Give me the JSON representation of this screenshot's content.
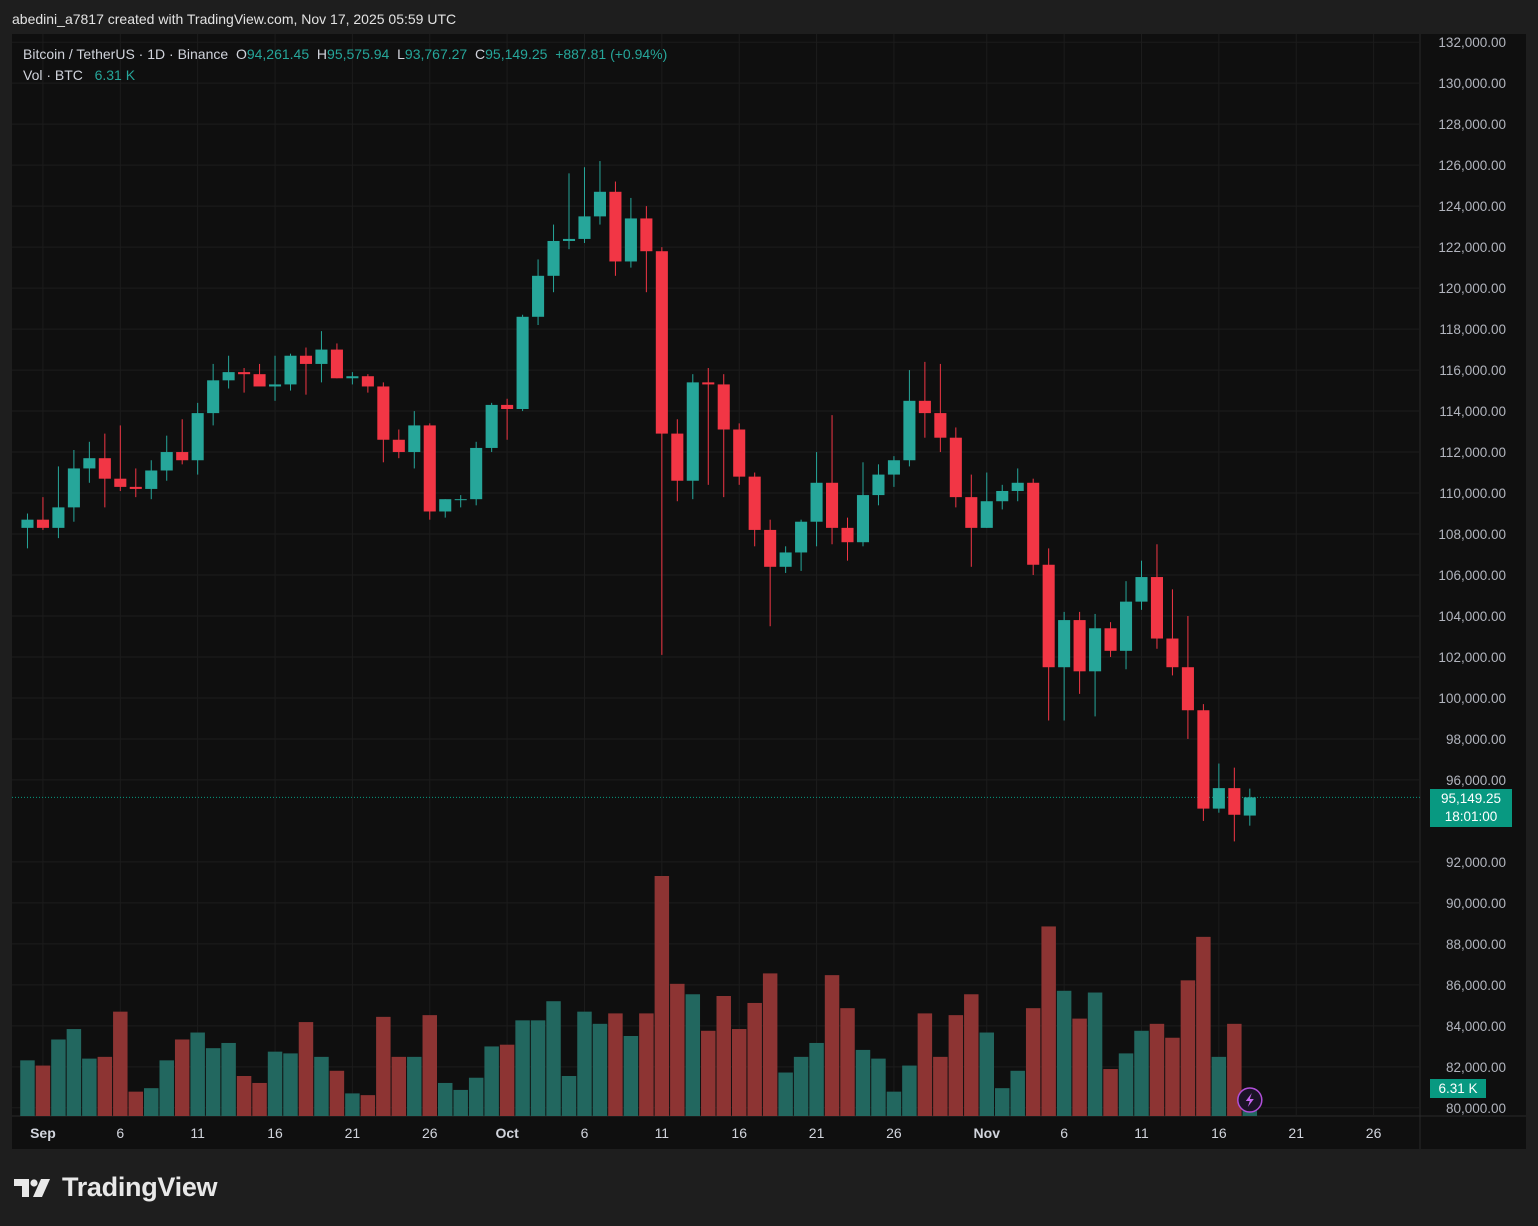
{
  "caption": "abedini_a7817 created with TradingView.com, Nov 17, 2025 05:59 UTC",
  "legend": {
    "symbol": "Bitcoin / TetherUS · 1D · Binance",
    "o_label": "O",
    "o_value": "94,261.45",
    "h_label": "H",
    "h_value": "95,575.94",
    "l_label": "L",
    "l_value": "93,767.27",
    "c_label": "C",
    "c_value": "95,149.25",
    "change": "+887.81 (+0.94%)",
    "vol_label": "Vol · BTC",
    "vol_value": "6.31 K"
  },
  "badges": {
    "price": "95,149.25",
    "countdown": "18:01:00",
    "volume": "6.31 K"
  },
  "brand": "TradingView",
  "colors": {
    "up": "#26a69a",
    "down": "#f23645",
    "vol_up": "#22675f",
    "vol_down": "#8d3433",
    "background": "#0f0f0f"
  },
  "icons": {
    "alert": "lightning-bolt-icon",
    "logo": "tradingview-logo-icon"
  },
  "chart_data": {
    "type": "candlestick",
    "y_axis": {
      "range": [
        79600,
        132400
      ],
      "ticks": [
        "132,000.00",
        "130,000.00",
        "128,000.00",
        "126,000.00",
        "124,000.00",
        "122,000.00",
        "120,000.00",
        "118,000.00",
        "116,000.00",
        "114,000.00",
        "112,000.00",
        "110,000.00",
        "108,000.00",
        "106,000.00",
        "104,000.00",
        "102,000.00",
        "100,000.00",
        "98,000.00",
        "96,000.00",
        "92,000.00",
        "90,000.00",
        "88,000.00",
        "86,000.00",
        "84,000.00",
        "82,000.00",
        "80,000.00"
      ],
      "tick_values": [
        132000,
        130000,
        128000,
        126000,
        124000,
        122000,
        120000,
        118000,
        116000,
        114000,
        112000,
        110000,
        108000,
        106000,
        104000,
        102000,
        100000,
        98000,
        96000,
        92000,
        90000,
        88000,
        86000,
        84000,
        82000,
        80000
      ]
    },
    "x_axis": {
      "labels": [
        "Sep",
        "6",
        "11",
        "16",
        "21",
        "26",
        "Oct",
        "6",
        "11",
        "16",
        "21",
        "26",
        "Nov",
        "6",
        "11",
        "16",
        "21",
        "26"
      ],
      "label_dates": [
        "2025-09-01",
        "2025-09-06",
        "2025-09-11",
        "2025-09-16",
        "2025-09-21",
        "2025-09-26",
        "2025-10-01",
        "2025-10-06",
        "2025-10-11",
        "2025-10-16",
        "2025-10-21",
        "2025-10-26",
        "2025-11-01",
        "2025-11-06",
        "2025-11-11",
        "2025-11-16",
        "2025-11-21",
        "2025-11-26"
      ],
      "range": [
        "2025-08-30",
        "2025-11-29"
      ]
    },
    "grid": true,
    "last_price_line": 95149.25,
    "candles": [
      {
        "date": "2025-08-31",
        "o": 108300,
        "h": 109000,
        "l": 107300,
        "c": 108700
      },
      {
        "date": "2025-09-01",
        "o": 108700,
        "h": 109800,
        "l": 108200,
        "c": 108300
      },
      {
        "date": "2025-09-02",
        "o": 108300,
        "h": 111300,
        "l": 107800,
        "c": 109300
      },
      {
        "date": "2025-09-03",
        "o": 109300,
        "h": 112100,
        "l": 108600,
        "c": 111200
      },
      {
        "date": "2025-09-04",
        "o": 111200,
        "h": 112500,
        "l": 110500,
        "c": 111700
      },
      {
        "date": "2025-09-05",
        "o": 111700,
        "h": 112900,
        "l": 109300,
        "c": 110700
      },
      {
        "date": "2025-09-06",
        "o": 110700,
        "h": 113300,
        "l": 110100,
        "c": 110300
      },
      {
        "date": "2025-09-07",
        "o": 110300,
        "h": 111200,
        "l": 109800,
        "c": 110200
      },
      {
        "date": "2025-09-08",
        "o": 110200,
        "h": 111600,
        "l": 109700,
        "c": 111100
      },
      {
        "date": "2025-09-09",
        "o": 111100,
        "h": 112800,
        "l": 110600,
        "c": 112000
      },
      {
        "date": "2025-09-10",
        "o": 112000,
        "h": 113600,
        "l": 111400,
        "c": 111600
      },
      {
        "date": "2025-09-11",
        "o": 111600,
        "h": 114400,
        "l": 110900,
        "c": 113900
      },
      {
        "date": "2025-09-12",
        "o": 113900,
        "h": 116300,
        "l": 113300,
        "c": 115500
      },
      {
        "date": "2025-09-13",
        "o": 115500,
        "h": 116700,
        "l": 115100,
        "c": 115900
      },
      {
        "date": "2025-09-14",
        "o": 115900,
        "h": 116100,
        "l": 114900,
        "c": 115800
      },
      {
        "date": "2025-09-15",
        "o": 115800,
        "h": 116300,
        "l": 115300,
        "c": 115200
      },
      {
        "date": "2025-09-16",
        "o": 115200,
        "h": 116700,
        "l": 114500,
        "c": 115300
      },
      {
        "date": "2025-09-17",
        "o": 115300,
        "h": 116800,
        "l": 115000,
        "c": 116700
      },
      {
        "date": "2025-09-18",
        "o": 116700,
        "h": 117100,
        "l": 114800,
        "c": 116300
      },
      {
        "date": "2025-09-19",
        "o": 116300,
        "h": 117900,
        "l": 115400,
        "c": 117000
      },
      {
        "date": "2025-09-20",
        "o": 117000,
        "h": 117300,
        "l": 115600,
        "c": 115600
      },
      {
        "date": "2025-09-21",
        "o": 115600,
        "h": 115900,
        "l": 115300,
        "c": 115700
      },
      {
        "date": "2025-09-22",
        "o": 115700,
        "h": 115800,
        "l": 114900,
        "c": 115200
      },
      {
        "date": "2025-09-23",
        "o": 115200,
        "h": 115400,
        "l": 111500,
        "c": 112600
      },
      {
        "date": "2025-09-24",
        "o": 112600,
        "h": 113100,
        "l": 111700,
        "c": 112000
      },
      {
        "date": "2025-09-25",
        "o": 112000,
        "h": 114000,
        "l": 111200,
        "c": 113300
      },
      {
        "date": "2025-09-26",
        "o": 113300,
        "h": 113400,
        "l": 108700,
        "c": 109100
      },
      {
        "date": "2025-09-27",
        "o": 109100,
        "h": 109700,
        "l": 108800,
        "c": 109700
      },
      {
        "date": "2025-09-28",
        "o": 109700,
        "h": 109900,
        "l": 109300,
        "c": 109700
      },
      {
        "date": "2025-09-29",
        "o": 109700,
        "h": 112500,
        "l": 109400,
        "c": 112200
      },
      {
        "date": "2025-09-30",
        "o": 112200,
        "h": 114400,
        "l": 112000,
        "c": 114300
      },
      {
        "date": "2025-10-01",
        "o": 114300,
        "h": 114600,
        "l": 112600,
        "c": 114100
      },
      {
        "date": "2025-10-02",
        "o": 114100,
        "h": 118700,
        "l": 114000,
        "c": 118600
      },
      {
        "date": "2025-10-03",
        "o": 118600,
        "h": 121400,
        "l": 118200,
        "c": 120600
      },
      {
        "date": "2025-10-04",
        "o": 120600,
        "h": 123100,
        "l": 119800,
        "c": 122300
      },
      {
        "date": "2025-10-05",
        "o": 122300,
        "h": 125600,
        "l": 121900,
        "c": 122400
      },
      {
        "date": "2025-10-06",
        "o": 122400,
        "h": 125900,
        "l": 122200,
        "c": 123500
      },
      {
        "date": "2025-10-07",
        "o": 123500,
        "h": 126200,
        "l": 123100,
        "c": 124700
      },
      {
        "date": "2025-10-08",
        "o": 124700,
        "h": 125200,
        "l": 120600,
        "c": 121300
      },
      {
        "date": "2025-10-09",
        "o": 121300,
        "h": 124400,
        "l": 121000,
        "c": 123400
      },
      {
        "date": "2025-10-10",
        "o": 123400,
        "h": 124000,
        "l": 119800,
        "c": 121800
      },
      {
        "date": "2025-10-11",
        "o": 121800,
        "h": 122000,
        "l": 102100,
        "c": 112900
      },
      {
        "date": "2025-10-12",
        "o": 112900,
        "h": 113600,
        "l": 109600,
        "c": 110600
      },
      {
        "date": "2025-10-13",
        "o": 110600,
        "h": 115800,
        "l": 109700,
        "c": 115400
      },
      {
        "date": "2025-10-14",
        "o": 115400,
        "h": 116100,
        "l": 110400,
        "c": 115300
      },
      {
        "date": "2025-10-15",
        "o": 115300,
        "h": 115800,
        "l": 109800,
        "c": 113100
      },
      {
        "date": "2025-10-16",
        "o": 113100,
        "h": 113400,
        "l": 110400,
        "c": 110800
      },
      {
        "date": "2025-10-17",
        "o": 110800,
        "h": 111000,
        "l": 107400,
        "c": 108200
      },
      {
        "date": "2025-10-18",
        "o": 108200,
        "h": 108700,
        "l": 103500,
        "c": 106400
      },
      {
        "date": "2025-10-19",
        "o": 106400,
        "h": 107400,
        "l": 106100,
        "c": 107100
      },
      {
        "date": "2025-10-20",
        "o": 107100,
        "h": 108700,
        "l": 106200,
        "c": 108600
      },
      {
        "date": "2025-10-21",
        "o": 108600,
        "h": 112000,
        "l": 107400,
        "c": 110500
      },
      {
        "date": "2025-10-22",
        "o": 110500,
        "h": 113800,
        "l": 107500,
        "c": 108300
      },
      {
        "date": "2025-10-23",
        "o": 108300,
        "h": 108800,
        "l": 106700,
        "c": 107600
      },
      {
        "date": "2025-10-24",
        "o": 107600,
        "h": 111500,
        "l": 107400,
        "c": 109900
      },
      {
        "date": "2025-10-25",
        "o": 109900,
        "h": 111400,
        "l": 109400,
        "c": 110900
      },
      {
        "date": "2025-10-26",
        "o": 110900,
        "h": 111800,
        "l": 110300,
        "c": 111600
      },
      {
        "date": "2025-10-27",
        "o": 111600,
        "h": 116000,
        "l": 111300,
        "c": 114500
      },
      {
        "date": "2025-10-28",
        "o": 114500,
        "h": 116400,
        "l": 112700,
        "c": 113900
      },
      {
        "date": "2025-10-29",
        "o": 113900,
        "h": 116300,
        "l": 112000,
        "c": 112700
      },
      {
        "date": "2025-10-30",
        "o": 112700,
        "h": 113200,
        "l": 109300,
        "c": 109800
      },
      {
        "date": "2025-10-31",
        "o": 109800,
        "h": 110900,
        "l": 106400,
        "c": 108300
      },
      {
        "date": "2025-11-01",
        "o": 108300,
        "h": 111000,
        "l": 108300,
        "c": 109600
      },
      {
        "date": "2025-11-02",
        "o": 109600,
        "h": 110400,
        "l": 109200,
        "c": 110100
      },
      {
        "date": "2025-11-03",
        "o": 110100,
        "h": 111200,
        "l": 109600,
        "c": 110500
      },
      {
        "date": "2025-11-04",
        "o": 110500,
        "h": 110700,
        "l": 106000,
        "c": 106500
      },
      {
        "date": "2025-11-05",
        "o": 106500,
        "h": 107300,
        "l": 98900,
        "c": 101500
      },
      {
        "date": "2025-11-06",
        "o": 101500,
        "h": 104200,
        "l": 98900,
        "c": 103800
      },
      {
        "date": "2025-11-07",
        "o": 103800,
        "h": 104200,
        "l": 100200,
        "c": 101300
      },
      {
        "date": "2025-11-08",
        "o": 101300,
        "h": 104100,
        "l": 99100,
        "c": 103400
      },
      {
        "date": "2025-11-09",
        "o": 103400,
        "h": 103700,
        "l": 102000,
        "c": 102300
      },
      {
        "date": "2025-11-10",
        "o": 102300,
        "h": 105700,
        "l": 101400,
        "c": 104700
      },
      {
        "date": "2025-11-11",
        "o": 104700,
        "h": 106700,
        "l": 104300,
        "c": 105900
      },
      {
        "date": "2025-11-12",
        "o": 105900,
        "h": 107500,
        "l": 102400,
        "c": 102900
      },
      {
        "date": "2025-11-13",
        "o": 102900,
        "h": 105300,
        "l": 101100,
        "c": 101500
      },
      {
        "date": "2025-11-14",
        "o": 101500,
        "h": 104000,
        "l": 98000,
        "c": 99400
      },
      {
        "date": "2025-11-15",
        "o": 99400,
        "h": 99700,
        "l": 94000,
        "c": 94600
      },
      {
        "date": "2025-11-16",
        "o": 94600,
        "h": 96800,
        "l": 94400,
        "c": 95600
      },
      {
        "date": "2025-11-17",
        "o": 95600,
        "h": 96600,
        "l": 93000,
        "c": 94300
      },
      {
        "date": "2025-11-18",
        "o": 94261.45,
        "h": 95575.94,
        "l": 93767.27,
        "c": 95149.25
      }
    ],
    "volume": {
      "unit": "K BTC",
      "values": [
        16.0,
        14.5,
        22.0,
        25.0,
        16.5,
        17.0,
        30.0,
        7.0,
        8.0,
        16.0,
        22.0,
        24.0,
        19.5,
        21.0,
        11.5,
        9.5,
        18.5,
        18.0,
        27.0,
        17.0,
        13.0,
        6.5,
        6.0,
        28.5,
        17.0,
        17.0,
        29.0,
        9.5,
        7.5,
        11.0,
        20.0,
        20.5,
        27.5,
        27.5,
        33.0,
        11.5,
        30.0,
        26.5,
        29.5,
        23.0,
        29.5,
        69.0,
        38.0,
        35.0,
        24.5,
        34.5,
        25.0,
        32.5,
        41.0,
        12.5,
        17.0,
        21.0,
        40.5,
        31.0,
        19.0,
        16.5,
        7.0,
        14.5,
        29.5,
        17.0,
        29.0,
        35.0,
        24.0,
        8.0,
        13.0,
        31.0,
        54.5,
        36.0,
        28.0,
        35.5,
        13.5,
        18.0,
        24.5,
        26.5,
        22.5,
        39.0,
        51.5,
        17.0,
        26.5,
        6.31
      ]
    }
  }
}
